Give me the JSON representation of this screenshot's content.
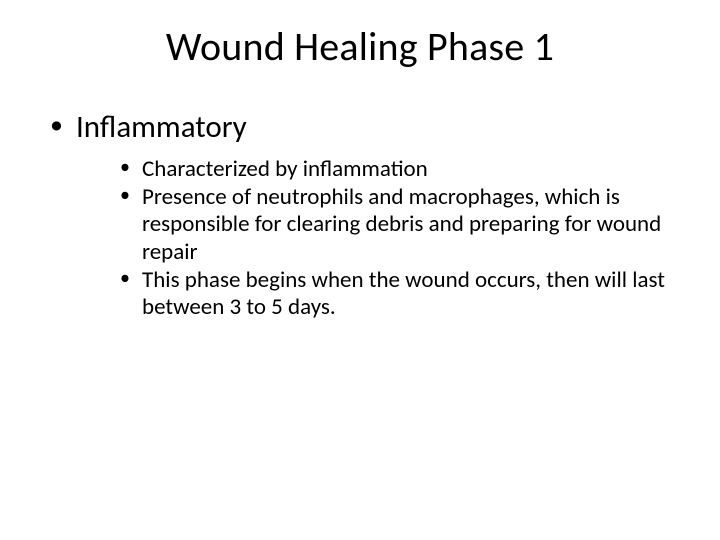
{
  "slide": {
    "title": "Wound Healing Phase 1",
    "title_fontsize": 40,
    "title_color": "#000000",
    "background_color": "#ffffff",
    "text_color": "#000000",
    "font_family": "Calibri",
    "level1": {
      "fontsize": 31,
      "bullet": "•",
      "items": [
        {
          "text": "Inflammatory",
          "sub": {
            "fontsize": 23,
            "bullet": "•",
            "items": [
              "Characterized by inflammation",
              "Presence of neutrophils and macrophages, which is responsible for clearing debris and preparing for wound repair",
              "This phase begins when the wound occurs, then will last between 3 to 5 days."
            ]
          }
        }
      ]
    }
  }
}
